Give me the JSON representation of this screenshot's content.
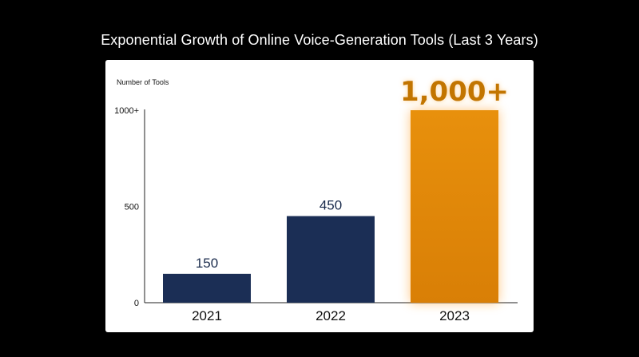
{
  "page": {
    "title": "Exponential Growth of Online Voice-Generation Tools (Last 3 Years)"
  },
  "chart_data": {
    "type": "bar",
    "title": "Exponential Growth of Online Voice-Generation Tools (Last 3 Years)",
    "ylabel": "Number of Tools",
    "xlabel": "",
    "categories": [
      "2021",
      "2022",
      "2023"
    ],
    "values": [
      150,
      450,
      1000
    ],
    "data_labels": [
      "150",
      "450",
      "1,000+"
    ],
    "yticks": [
      0,
      500,
      1000
    ],
    "ytick_labels": [
      "0",
      "500",
      "1000+"
    ],
    "ylim": [
      0,
      1000
    ],
    "grid": false,
    "legend": "none",
    "colors": {
      "bar": "#1b2e55",
      "highlight_bar": "#e8900c",
      "highlight_glow": "#ff9a1a",
      "highlight_label": "#c27400",
      "background": "#000000",
      "card": "#ffffff"
    },
    "highlight_index": 2
  }
}
